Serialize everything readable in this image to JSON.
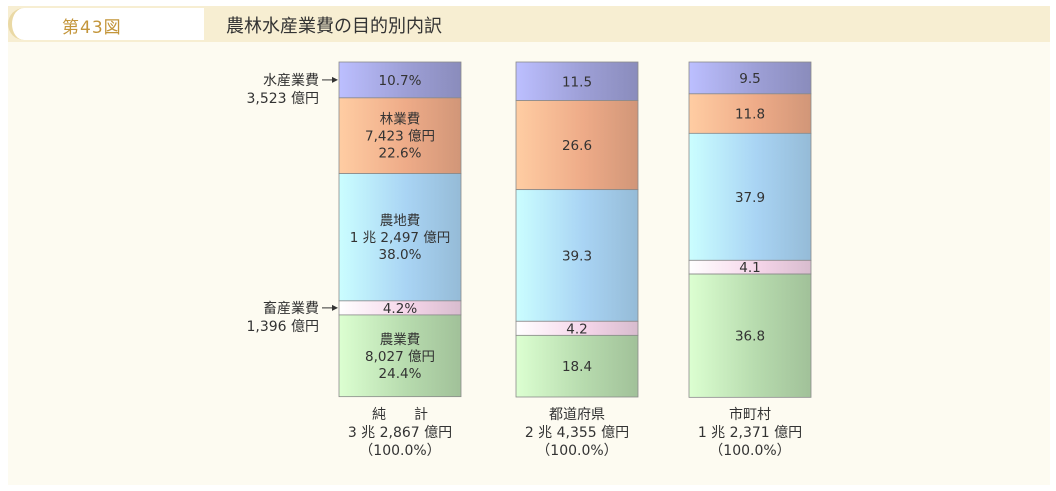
{
  "figure": {
    "number": "第43図",
    "title": "農林水産業費の目的別内訳"
  },
  "colors": {
    "水産業費": "#9d9fd6",
    "林業費": "#eeab88",
    "農地費": "#a9d4f4",
    "畜産業費": "#f6d6ea",
    "農業費": "#b7dbae"
  },
  "annotations": {
    "suisan": [
      "水産業費",
      "3,523 億円"
    ],
    "chikusan": [
      "畜産業費",
      "1,396 億円"
    ]
  },
  "chart_data": {
    "type": "stacked-bar-100",
    "categories": [
      "純　　計",
      "都道府県",
      "市町村"
    ],
    "category_totals": [
      "3 兆 2,867 億円",
      "2 兆 4,355 億円",
      "1 兆 2,371 億円"
    ],
    "category_shares": [
      "（100.0%）",
      "（100.0%）",
      "（100.0%）"
    ],
    "series": [
      {
        "name": "水産業費",
        "values": [
          10.7,
          11.5,
          9.5
        ],
        "labels": [
          [
            "10.7%"
          ],
          [
            "11.5"
          ],
          [
            "9.5"
          ]
        ]
      },
      {
        "name": "林業費",
        "values": [
          22.6,
          26.6,
          11.8
        ],
        "labels": [
          [
            "林業費",
            "7,423 億円",
            "22.6%"
          ],
          [
            "26.6"
          ],
          [
            "11.8"
          ]
        ]
      },
      {
        "name": "農地費",
        "values": [
          38.0,
          39.3,
          37.9
        ],
        "labels": [
          [
            "農地費",
            "1 兆 2,497 億円",
            "38.0%"
          ],
          [
            "39.3"
          ],
          [
            "37.9"
          ]
        ]
      },
      {
        "name": "畜産業費",
        "values": [
          4.2,
          4.2,
          4.1
        ],
        "labels": [
          [
            "4.2%"
          ],
          [
            "4.2"
          ],
          [
            "4.1"
          ]
        ]
      },
      {
        "name": "農業費",
        "values": [
          24.4,
          18.4,
          36.8
        ],
        "labels": [
          [
            "農業費",
            "8,027 億円",
            "24.4%"
          ],
          [
            "18.4"
          ],
          [
            "36.8"
          ]
        ]
      }
    ],
    "ylim": [
      0,
      100
    ]
  }
}
